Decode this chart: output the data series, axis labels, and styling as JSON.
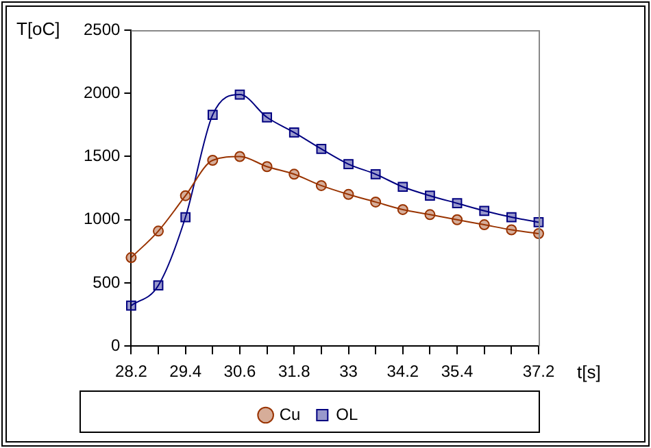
{
  "chart_data": {
    "type": "line",
    "xlabel": "t[s]",
    "ylabel": "T[oC]",
    "categories": [
      "28.2",
      null,
      "29.4",
      null,
      "30.6",
      null,
      "31.8",
      null,
      "33",
      null,
      "34.2",
      null,
      "35.4",
      null,
      null,
      "37.2"
    ],
    "series": [
      {
        "name": "Cu",
        "color": "#993300",
        "marker": "circle",
        "values": [
          700,
          910,
          1190,
          1470,
          1500,
          1420,
          1360,
          1270,
          1200,
          1140,
          1080,
          1040,
          1000,
          960,
          920,
          890
        ]
      },
      {
        "name": "OL",
        "color": "#000080",
        "marker": "square",
        "values": [
          320,
          480,
          1020,
          1830,
          1990,
          1810,
          1690,
          1560,
          1440,
          1360,
          1260,
          1190,
          1130,
          1070,
          1020,
          980
        ]
      }
    ],
    "ylim": [
      0,
      2500
    ],
    "yticks": [
      0,
      500,
      1000,
      1500,
      2000,
      2500
    ],
    "grid": false,
    "legend": "bottom"
  }
}
